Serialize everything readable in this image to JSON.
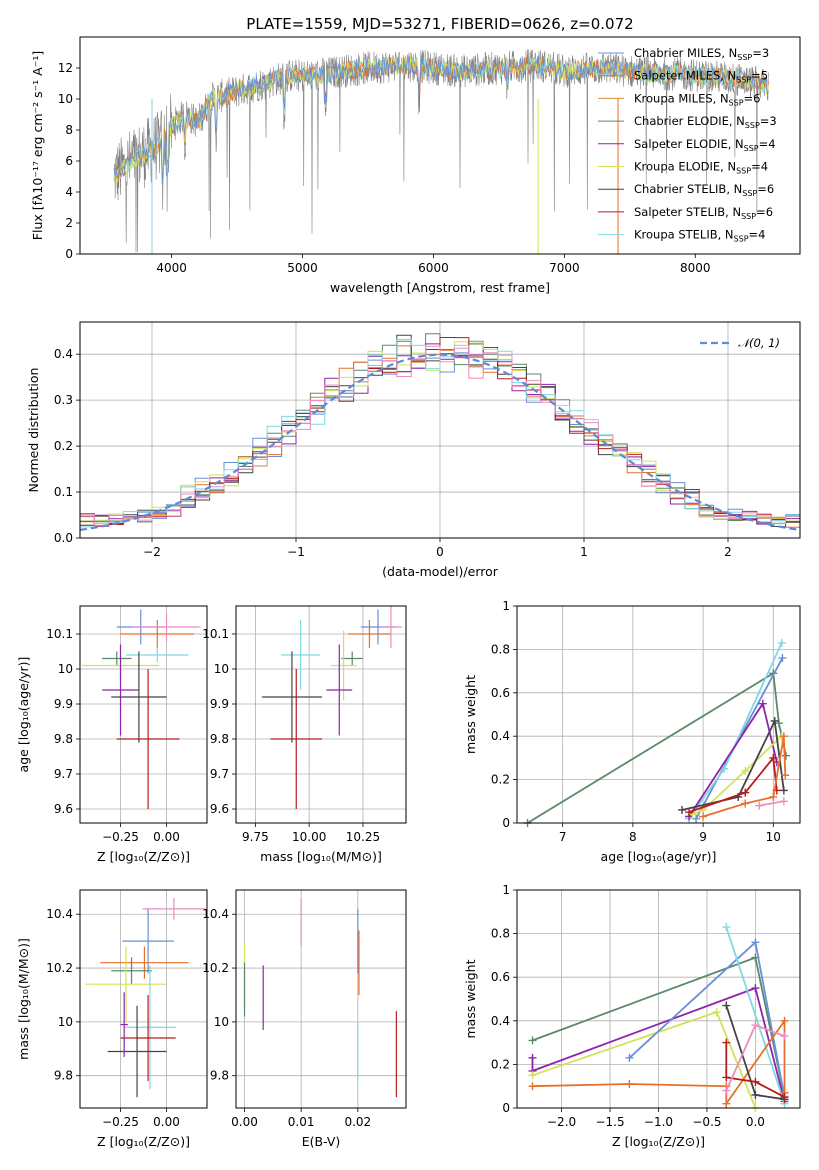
{
  "palette": {
    "Chabrier MILES": "#6a8fd8",
    "Salpeter MILES": "#e8702a",
    "Kroupa MILES": "#d9903a",
    "Chabrier ELODIE": "#5a8a68",
    "Salpeter ELODIE": "#8e24aa",
    "Kroupa ELODIE": "#d4e157",
    "Chabrier STELIB": "#444444",
    "Salpeter STELIB": "#b71c1c",
    "Kroupa STELIB": "#80d8e0",
    "pink": "#ef8bbd",
    "normal": "#5b8dd6"
  },
  "chart_data": [
    {
      "id": "spectrum",
      "type": "line",
      "title": "PLATE=1559, MJD=53271, FIBERID=0626, z=0.072",
      "xlabel": "wavelength [Angstrom, rest frame]",
      "ylabel": "Flux [fλ10⁻¹⁷ erg cm⁻² s⁻¹ A⁻¹]",
      "xlim": [
        3300,
        8800
      ],
      "ylim": [
        0,
        14
      ],
      "xticks": [
        4000,
        5000,
        6000,
        7000,
        8000
      ],
      "yticks": [
        0,
        2,
        4,
        6,
        8,
        10,
        12
      ],
      "grid": false,
      "legend_position": "upper-right",
      "observed_anchors": [
        [
          3560,
          5.0
        ],
        [
          3700,
          6.0
        ],
        [
          3800,
          6.5
        ],
        [
          3900,
          7.0
        ],
        [
          4000,
          8.2
        ],
        [
          4100,
          9.0
        ],
        [
          4200,
          8.5
        ],
        [
          4300,
          10.0
        ],
        [
          4500,
          10.5
        ],
        [
          4700,
          11.0
        ],
        [
          4900,
          11.5
        ],
        [
          5100,
          11.5
        ],
        [
          5300,
          11.8
        ],
        [
          5500,
          12.0
        ],
        [
          5800,
          12.2
        ],
        [
          6000,
          12.0
        ],
        [
          6200,
          11.8
        ],
        [
          6500,
          12.0
        ],
        [
          6800,
          12.2
        ],
        [
          7000,
          11.8
        ],
        [
          7300,
          12.0
        ],
        [
          7600,
          11.7
        ],
        [
          7900,
          11.6
        ],
        [
          8200,
          11.4
        ],
        [
          8500,
          11.0
        ],
        [
          8560,
          10.8
        ]
      ],
      "legend": [
        {
          "label": "Chabrier MILES, N",
          "sub": "SSP",
          "tail": "=3"
        },
        {
          "label": "Salpeter MILES, N",
          "sub": "SSP",
          "tail": "=5"
        },
        {
          "label": "Kroupa MILES, N",
          "sub": "SSP",
          "tail": "=6"
        },
        {
          "label": "Chabrier ELODIE, N",
          "sub": "SSP",
          "tail": "=3"
        },
        {
          "label": "Salpeter ELODIE, N",
          "sub": "SSP",
          "tail": "=4"
        },
        {
          "label": "Kroupa ELODIE, N",
          "sub": "SSP",
          "tail": "=4"
        },
        {
          "label": "Chabrier STELIB, N",
          "sub": "SSP",
          "tail": "=6"
        },
        {
          "label": "Salpeter STELIB, N",
          "sub": "SSP",
          "tail": "=6"
        },
        {
          "label": "Kroupa STELIB, N",
          "sub": "SSP",
          "tail": "=4"
        }
      ]
    },
    {
      "id": "residuals",
      "type": "histogram",
      "xlabel": "(data-model)/error",
      "ylabel": "Normed distribution",
      "xlim": [
        -2.5,
        2.5
      ],
      "ylim": [
        0,
        0.47
      ],
      "xticks": [
        -2,
        -1,
        0,
        1,
        2
      ],
      "xtick_labels": [
        "−2",
        "−1",
        "0",
        "1",
        "2"
      ],
      "yticks": [
        0.0,
        0.1,
        0.2,
        0.3,
        0.4
      ],
      "ytick_labels": [
        "0.0",
        "0.1",
        "0.2",
        "0.3",
        "0.4"
      ],
      "grid": true,
      "bin_width": 0.1,
      "legend": "𝒩(0, 1)",
      "legend_position": "upper-right"
    },
    {
      "id": "age_vs_Z",
      "type": "errorbar",
      "xlabel": "Z [log₁₀(Z/Z⊙)]",
      "ylabel": "age  [log₁₀(age/yr)]",
      "xlim": [
        -0.47,
        0.22
      ],
      "ylim": [
        9.56,
        10.18
      ],
      "xticks": [
        -0.25,
        0.0
      ],
      "xtick_labels": [
        "−0.25",
        "0.00"
      ],
      "yticks": [
        9.6,
        9.7,
        9.8,
        9.9,
        10.0,
        10.1
      ],
      "grid": true,
      "points": [
        {
          "k": "Chabrier MILES",
          "x": -0.14,
          "xerr": 0.13,
          "y": 10.12,
          "yerr": 0.05
        },
        {
          "k": "Salpeter MILES",
          "x": -0.05,
          "xerr": 0.2,
          "y": 10.1,
          "yerr": 0.04
        },
        {
          "k": "pink",
          "x": 0.0,
          "xerr": 0.18,
          "y": 10.12,
          "yerr": 0.04
        },
        {
          "k": "Kroupa STELIB",
          "x": -0.05,
          "xerr": 0.17,
          "y": 10.04,
          "yerr": 0.02
        },
        {
          "k": "Chabrier ELODIE",
          "x": -0.27,
          "xerr": 0.08,
          "y": 10.03,
          "yerr": 0.02
        },
        {
          "k": "Kroupa ELODIE",
          "x": -0.25,
          "xerr": 0.21,
          "y": 10.01,
          "yerr": 0.04
        },
        {
          "k": "Salpeter ELODIE",
          "x": -0.25,
          "xerr": 0.1,
          "y": 9.94,
          "yerr": 0.13
        },
        {
          "k": "Chabrier STELIB",
          "x": -0.15,
          "xerr": 0.15,
          "y": 9.92,
          "yerr": 0.13
        },
        {
          "k": "Salpeter STELIB",
          "x": -0.1,
          "xerr": 0.17,
          "y": 9.8,
          "yerr": 0.2
        }
      ]
    },
    {
      "id": "age_vs_mass",
      "type": "errorbar",
      "xlabel": "mass [log₁₀(M/M⊙)]",
      "xlim": [
        9.66,
        10.45
      ],
      "ylim": [
        9.56,
        10.18
      ],
      "xticks": [
        9.75,
        10.0,
        10.25
      ],
      "xtick_labels": [
        "9.75",
        "10.00",
        "10.25"
      ],
      "yticks": [
        9.6,
        9.7,
        9.8,
        9.9,
        10.0,
        10.1
      ],
      "grid": true,
      "points": [
        {
          "k": "Chabrier MILES",
          "x": 10.32,
          "xerr": 0.08,
          "y": 10.12,
          "yerr": 0.05
        },
        {
          "k": "Salpeter MILES",
          "x": 10.28,
          "xerr": 0.1,
          "y": 10.1,
          "yerr": 0.04
        },
        {
          "k": "pink",
          "x": 10.38,
          "xerr": 0.05,
          "y": 10.12,
          "yerr": 0.06
        },
        {
          "k": "Kroupa STELIB",
          "x": 9.96,
          "xerr": 0.09,
          "y": 10.04,
          "yerr": 0.1
        },
        {
          "k": "Chabrier ELODIE",
          "x": 10.2,
          "xerr": 0.05,
          "y": 10.03,
          "yerr": 0.02
        },
        {
          "k": "Kroupa ELODIE",
          "x": 10.16,
          "xerr": 0.06,
          "y": 10.01,
          "yerr": 0.1
        },
        {
          "k": "Salpeter ELODIE",
          "x": 10.14,
          "xerr": 0.06,
          "y": 9.94,
          "yerr": 0.13
        },
        {
          "k": "Chabrier STELIB",
          "x": 9.92,
          "xerr": 0.14,
          "y": 9.92,
          "yerr": 0.13
        },
        {
          "k": "Salpeter STELIB",
          "x": 9.94,
          "xerr": 0.12,
          "y": 9.8,
          "yerr": 0.2
        }
      ]
    },
    {
      "id": "weight_vs_age",
      "type": "line",
      "xlabel": "age  [log₁₀(age/yr)]",
      "ylabel": "mass weight",
      "xlim": [
        6.35,
        10.38
      ],
      "ylim": [
        0,
        1.0
      ],
      "xticks": [
        7,
        8,
        9,
        10
      ],
      "yticks": [
        0.0,
        0.2,
        0.4,
        0.6,
        0.8,
        1.0
      ],
      "grid": true,
      "series": [
        {
          "k": "Chabrier ELODIE",
          "points": [
            [
              6.5,
              0.0
            ],
            [
              10.0,
              0.69
            ],
            [
              10.08,
              0.46
            ],
            [
              10.18,
              0.31
            ]
          ]
        },
        {
          "k": "Chabrier MILES",
          "points": [
            [
              8.9,
              0.02
            ],
            [
              10.13,
              0.76
            ]
          ]
        },
        {
          "k": "Kroupa STELIB",
          "points": [
            [
              8.8,
              0.02
            ],
            [
              9.3,
              0.25
            ],
            [
              10.12,
              0.83
            ]
          ]
        },
        {
          "k": "Salpeter ELODIE",
          "points": [
            [
              8.8,
              0.03
            ],
            [
              9.85,
              0.55
            ],
            [
              10.05,
              0.28
            ]
          ]
        },
        {
          "k": "Kroupa ELODIE",
          "points": [
            [
              8.85,
              0.04
            ],
            [
              9.0,
              0.06
            ],
            [
              9.6,
              0.24
            ],
            [
              10.12,
              0.4
            ]
          ]
        },
        {
          "k": "Chabrier STELIB",
          "points": [
            [
              8.7,
              0.06
            ],
            [
              9.5,
              0.12
            ],
            [
              10.02,
              0.47
            ],
            [
              10.15,
              0.15
            ]
          ]
        },
        {
          "k": "Salpeter STELIB",
          "points": [
            [
              8.8,
              0.05
            ],
            [
              9.6,
              0.14
            ],
            [
              10.0,
              0.3
            ],
            [
              10.05,
              0.15
            ]
          ]
        },
        {
          "k": "Salpeter MILES",
          "points": [
            [
              9.0,
              0.03
            ],
            [
              9.6,
              0.09
            ],
            [
              10.0,
              0.12
            ],
            [
              10.15,
              0.4
            ],
            [
              10.17,
              0.22
            ]
          ]
        },
        {
          "k": "pink",
          "points": [
            [
              9.8,
              0.08
            ],
            [
              10.15,
              0.1
            ]
          ]
        }
      ]
    },
    {
      "id": "mass_vs_Z",
      "type": "errorbar",
      "xlabel": "Z [log₁₀(Z/Z⊙)]",
      "ylabel": "mass [log₁₀(M/M⊙)]",
      "xlim": [
        -0.47,
        0.22
      ],
      "ylim": [
        9.68,
        10.49
      ],
      "xticks": [
        -0.25,
        0.0
      ],
      "xtick_labels": [
        "−0.25",
        "0.00"
      ],
      "yticks": [
        9.8,
        10.0,
        10.2,
        10.4
      ],
      "grid": true,
      "points": [
        {
          "k": "pink",
          "x": 0.04,
          "xerr": 0.17,
          "y": 10.42,
          "yerr": 0.04
        },
        {
          "k": "Chabrier MILES",
          "x": -0.1,
          "xerr": 0.14,
          "y": 10.3,
          "yerr": 0.12
        },
        {
          "k": "Salpeter MILES",
          "x": -0.12,
          "xerr": 0.24,
          "y": 10.22,
          "yerr": 0.06
        },
        {
          "k": "Chabrier ELODIE",
          "x": -0.19,
          "xerr": 0.11,
          "y": 10.19,
          "yerr": 0.05
        },
        {
          "k": "Kroupa ELODIE",
          "x": -0.22,
          "xerr": 0.22,
          "y": 10.14,
          "yerr": 0.14
        },
        {
          "k": "Kroupa STELIB",
          "x": -0.09,
          "xerr": 0.14,
          "y": 9.98,
          "yerr": 0.23
        },
        {
          "k": "Salpeter STELIB",
          "x": -0.1,
          "xerr": 0.15,
          "y": 9.94,
          "yerr": 0.16
        },
        {
          "k": "Chabrier STELIB",
          "x": -0.16,
          "xerr": 0.16,
          "y": 9.89,
          "yerr": 0.17
        },
        {
          "k": "Salpeter ELODIE",
          "x": -0.23,
          "xerr": 0.02,
          "y": 9.99,
          "yerr": 0.12
        }
      ]
    },
    {
      "id": "mass_vs_EBV",
      "type": "errorbar",
      "xlabel": "E(B-V)",
      "xlim": [
        -0.0015,
        0.0285
      ],
      "ylim": [
        9.68,
        10.49
      ],
      "xticks": [
        0.0,
        0.01,
        0.02
      ],
      "xtick_labels": [
        "0.00",
        "0.01",
        "0.02"
      ],
      "yticks": [
        9.8,
        10.0,
        10.2,
        10.4
      ],
      "grid": true,
      "points": [
        {
          "k": "Kroupa ELODIE",
          "x": 0.0,
          "xerr": 0,
          "y": 10.17,
          "yerr": 0.12
        },
        {
          "k": "Chabrier ELODIE",
          "x": 0.0,
          "xerr": 0,
          "y": 10.12,
          "yerr": 0.1
        },
        {
          "k": "Salpeter ELODIE",
          "x": 0.0033,
          "xerr": 0,
          "y": 10.09,
          "yerr": 0.12
        },
        {
          "k": "pink",
          "x": 0.01,
          "xerr": 0,
          "y": 10.37,
          "yerr": 0.09
        },
        {
          "k": "Chabrier MILES",
          "x": 0.02,
          "xerr": 0,
          "y": 10.3,
          "yerr": 0.12
        },
        {
          "k": "Salpeter MILES",
          "x": 0.0202,
          "xerr": 0,
          "y": 10.22,
          "yerr": 0.12
        },
        {
          "k": "Kroupa STELIB",
          "x": 0.02,
          "xerr": 0,
          "y": 9.89,
          "yerr": 0.11
        },
        {
          "k": "Salpeter STELIB",
          "x": 0.0268,
          "xerr": 0,
          "y": 9.88,
          "yerr": 0.16
        }
      ]
    },
    {
      "id": "weight_vs_Z",
      "type": "line",
      "xlabel": "Z [log₁₀(Z/Z⊙)]",
      "ylabel": "mass weight",
      "xlim": [
        -2.46,
        0.46
      ],
      "ylim": [
        0,
        1.0
      ],
      "xticks": [
        -2.0,
        -1.5,
        -1.0,
        -0.5,
        0.0
      ],
      "xtick_labels": [
        "−2.0",
        "−1.5",
        "−1.0",
        "−0.5",
        "0.0"
      ],
      "yticks": [
        0.0,
        0.2,
        0.4,
        0.6,
        0.8,
        1.0
      ],
      "grid": true,
      "series": [
        {
          "k": "Chabrier ELODIE",
          "points": [
            [
              -2.3,
              0.31
            ],
            [
              0.0,
              0.69
            ],
            [
              0.3,
              0.05
            ]
          ]
        },
        {
          "k": "Salpeter ELODIE",
          "points": [
            [
              -2.3,
              0.23
            ],
            [
              -2.3,
              0.17
            ],
            [
              0.0,
              0.55
            ],
            [
              0.3,
              0.03
            ]
          ]
        },
        {
          "k": "Kroupa ELODIE",
          "points": [
            [
              -2.3,
              0.15
            ],
            [
              -0.4,
              0.44
            ],
            [
              0.0,
              0.0
            ]
          ]
        },
        {
          "k": "Chabrier MILES",
          "points": [
            [
              -1.3,
              0.23
            ],
            [
              0.0,
              0.76
            ],
            [
              0.3,
              0.05
            ]
          ]
        },
        {
          "k": "Kroupa STELIB",
          "points": [
            [
              -0.3,
              0.83
            ],
            [
              0.3,
              0.02
            ]
          ]
        },
        {
          "k": "Salpeter MILES",
          "points": [
            [
              -2.3,
              0.1
            ],
            [
              -1.3,
              0.11
            ],
            [
              -0.3,
              0.1
            ],
            [
              -0.3,
              0.02
            ],
            [
              0.3,
              0.4
            ],
            [
              0.3,
              0.07
            ]
          ]
        },
        {
          "k": "Chabrier STELIB",
          "points": [
            [
              -0.3,
              0.47
            ],
            [
              0.0,
              0.06
            ],
            [
              0.3,
              0.04
            ]
          ]
        },
        {
          "k": "Salpeter STELIB",
          "points": [
            [
              -0.3,
              0.3
            ],
            [
              -0.3,
              0.14
            ],
            [
              0.0,
              0.12
            ],
            [
              0.3,
              0.05
            ]
          ]
        },
        {
          "k": "pink",
          "points": [
            [
              -0.3,
              0.08
            ],
            [
              0.0,
              0.38
            ],
            [
              0.3,
              0.33
            ]
          ]
        }
      ]
    }
  ]
}
